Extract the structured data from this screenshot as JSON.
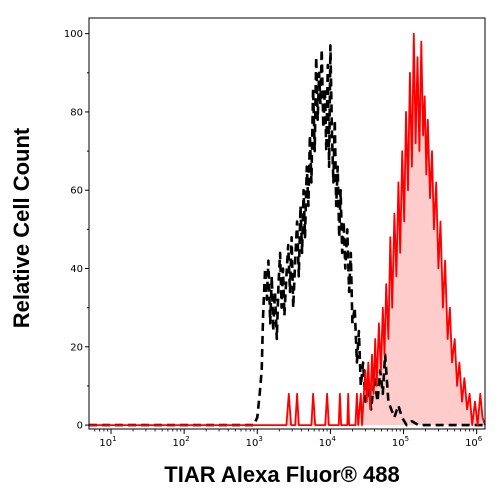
{
  "chart_data": {
    "type": "area",
    "title": "",
    "xlabel": "TIAR Alexa Fluor® 488",
    "ylabel": "Relative Cell Count",
    "x_scale": "log",
    "xlim": [
      5,
      1300000
    ],
    "ylim": [
      -1,
      104
    ],
    "grid": false,
    "legend": "none",
    "x_ticks": [
      {
        "value": 10,
        "base": "10",
        "exp": "1"
      },
      {
        "value": 100,
        "base": "10",
        "exp": "2"
      },
      {
        "value": 1000,
        "base": "10",
        "exp": "3"
      },
      {
        "value": 10000,
        "base": "10",
        "exp": "4"
      },
      {
        "value": 100000,
        "base": "10",
        "exp": "5"
      },
      {
        "value": 1000000,
        "base": "10",
        "exp": "6"
      }
    ],
    "y_ticks": [
      {
        "value": 0,
        "label": "0"
      },
      {
        "value": 20,
        "label": "20"
      },
      {
        "value": 40,
        "label": "40"
      },
      {
        "value": 60,
        "label": "60"
      },
      {
        "value": 80,
        "label": "80"
      },
      {
        "value": 100,
        "label": "100"
      }
    ],
    "series": [
      {
        "style": "dashed",
        "color": "#000000",
        "fill": "none",
        "points": [
          [
            5,
            0
          ],
          [
            900,
            0
          ],
          [
            1000,
            2
          ],
          [
            1080,
            8
          ],
          [
            1150,
            14
          ],
          [
            1200,
            28
          ],
          [
            1280,
            40
          ],
          [
            1350,
            32
          ],
          [
            1420,
            42
          ],
          [
            1500,
            26
          ],
          [
            1580,
            38
          ],
          [
            1650,
            24
          ],
          [
            1750,
            34
          ],
          [
            1850,
            22
          ],
          [
            1950,
            36
          ],
          [
            2050,
            44
          ],
          [
            2150,
            30
          ],
          [
            2250,
            40
          ],
          [
            2350,
            28
          ],
          [
            2500,
            38
          ],
          [
            2650,
            46
          ],
          [
            2800,
            34
          ],
          [
            2950,
            48
          ],
          [
            3100,
            30
          ],
          [
            3300,
            42
          ],
          [
            3500,
            52
          ],
          [
            3700,
            38
          ],
          [
            3900,
            56
          ],
          [
            4100,
            44
          ],
          [
            4300,
            60
          ],
          [
            4500,
            48
          ],
          [
            4750,
            66
          ],
          [
            5000,
            56
          ],
          [
            5250,
            74
          ],
          [
            5500,
            62
          ],
          [
            5800,
            86
          ],
          [
            6100,
            70
          ],
          [
            6400,
            94
          ],
          [
            6700,
            78
          ],
          [
            7000,
            90
          ],
          [
            7300,
            82
          ],
          [
            7600,
            96
          ],
          [
            8000,
            76
          ],
          [
            8400,
            86
          ],
          [
            8800,
            70
          ],
          [
            9200,
            92
          ],
          [
            9600,
            66
          ],
          [
            10000,
            97
          ],
          [
            10500,
            74
          ],
          [
            11000,
            62
          ],
          [
            11500,
            78
          ],
          [
            12000,
            56
          ],
          [
            12600,
            66
          ],
          [
            13200,
            48
          ],
          [
            13800,
            60
          ],
          [
            14500,
            44
          ],
          [
            15200,
            52
          ],
          [
            16000,
            40
          ],
          [
            17000,
            50
          ],
          [
            18000,
            34
          ],
          [
            19000,
            44
          ],
          [
            20000,
            26
          ],
          [
            21500,
            30
          ],
          [
            23000,
            16
          ],
          [
            24500,
            24
          ],
          [
            26000,
            10
          ],
          [
            28000,
            16
          ],
          [
            30000,
            6
          ],
          [
            33000,
            10
          ],
          [
            36000,
            4
          ],
          [
            40000,
            12
          ],
          [
            44000,
            6
          ],
          [
            48000,
            14
          ],
          [
            52000,
            8
          ],
          [
            56000,
            18
          ],
          [
            62000,
            6
          ],
          [
            68000,
            4
          ],
          [
            75000,
            2
          ],
          [
            85000,
            5
          ],
          [
            95000,
            2
          ],
          [
            110000,
            0
          ],
          [
            130000,
            1
          ],
          [
            160000,
            0
          ],
          [
            1300000,
            0
          ]
        ]
      },
      {
        "style": "solid",
        "color": "#ff0000",
        "fill": "#ffcccc",
        "points": [
          [
            5,
            0
          ],
          [
            2500,
            0
          ],
          [
            2700,
            8
          ],
          [
            2900,
            0
          ],
          [
            3300,
            0
          ],
          [
            3500,
            8
          ],
          [
            3700,
            0
          ],
          [
            5500,
            0
          ],
          [
            5800,
            8
          ],
          [
            6200,
            0
          ],
          [
            8500,
            0
          ],
          [
            9000,
            8
          ],
          [
            9500,
            0
          ],
          [
            13000,
            0
          ],
          [
            13500,
            8
          ],
          [
            14000,
            0
          ],
          [
            17000,
            0
          ],
          [
            17500,
            8
          ],
          [
            18000,
            0
          ],
          [
            22000,
            0
          ],
          [
            23000,
            8
          ],
          [
            24000,
            0
          ],
          [
            26000,
            8
          ],
          [
            27000,
            0
          ],
          [
            30000,
            14
          ],
          [
            31500,
            6
          ],
          [
            33000,
            16
          ],
          [
            35000,
            4
          ],
          [
            37000,
            18
          ],
          [
            39000,
            8
          ],
          [
            41000,
            22
          ],
          [
            43000,
            10
          ],
          [
            46000,
            26
          ],
          [
            49000,
            14
          ],
          [
            52000,
            30
          ],
          [
            55000,
            18
          ],
          [
            58000,
            36
          ],
          [
            62000,
            22
          ],
          [
            66000,
            48
          ],
          [
            70000,
            30
          ],
          [
            75000,
            54
          ],
          [
            80000,
            38
          ],
          [
            85000,
            62
          ],
          [
            90000,
            44
          ],
          [
            96000,
            70
          ],
          [
            102000,
            52
          ],
          [
            108000,
            80
          ],
          [
            115000,
            60
          ],
          [
            122000,
            90
          ],
          [
            130000,
            66
          ],
          [
            138000,
            100
          ],
          [
            146000,
            72
          ],
          [
            155000,
            94
          ],
          [
            165000,
            70
          ],
          [
            175000,
            98
          ],
          [
            185000,
            74
          ],
          [
            195000,
            84
          ],
          [
            205000,
            64
          ],
          [
            215000,
            78
          ],
          [
            230000,
            58
          ],
          [
            245000,
            70
          ],
          [
            260000,
            50
          ],
          [
            280000,
            62
          ],
          [
            300000,
            40
          ],
          [
            320000,
            52
          ],
          [
            345000,
            30
          ],
          [
            370000,
            42
          ],
          [
            400000,
            22
          ],
          [
            430000,
            30
          ],
          [
            460000,
            16
          ],
          [
            500000,
            22
          ],
          [
            540000,
            10
          ],
          [
            580000,
            16
          ],
          [
            630000,
            6
          ],
          [
            680000,
            12
          ],
          [
            740000,
            4
          ],
          [
            800000,
            8
          ],
          [
            870000,
            0
          ],
          [
            950000,
            6
          ],
          [
            1030000,
            0
          ],
          [
            1120000,
            8
          ],
          [
            1200000,
            2
          ],
          [
            1300000,
            0
          ]
        ]
      }
    ]
  }
}
